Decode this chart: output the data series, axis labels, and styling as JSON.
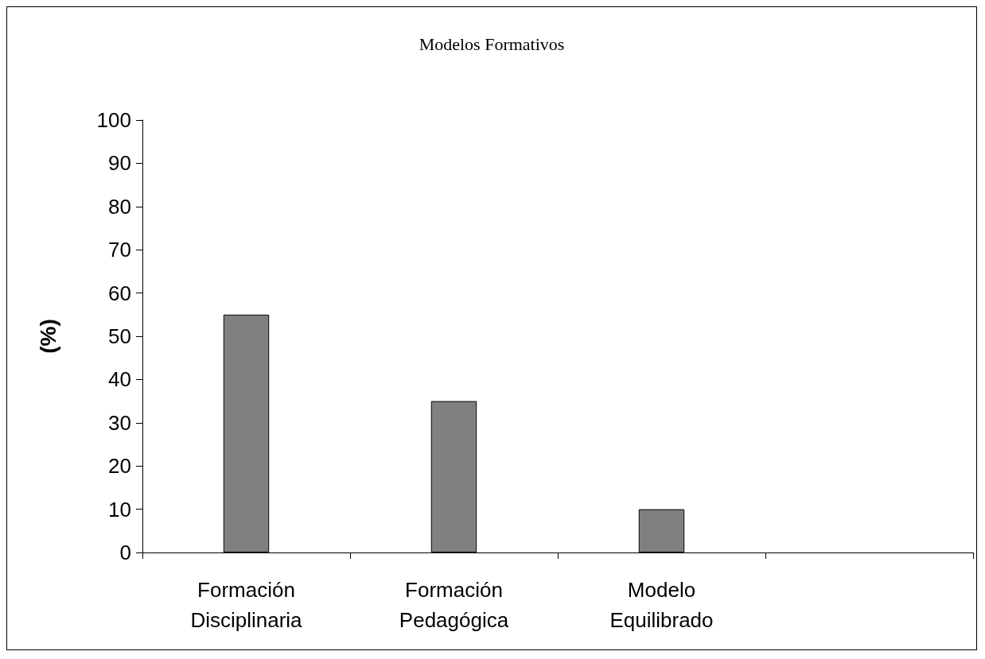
{
  "chart_data": {
    "type": "bar",
    "title": "Modelos Formativos",
    "ylabel": "(%)",
    "categories": [
      "Formación Disciplinaria",
      "Formación Pedagógica",
      "Modelo Equilibrado",
      null
    ],
    "values": [
      55,
      35,
      10,
      null
    ],
    "color": "#808080",
    "ylim": [
      0,
      100
    ],
    "yticks": [
      0,
      10,
      20,
      30,
      40,
      50,
      60,
      70,
      80,
      90,
      100
    ],
    "grid": false
  }
}
